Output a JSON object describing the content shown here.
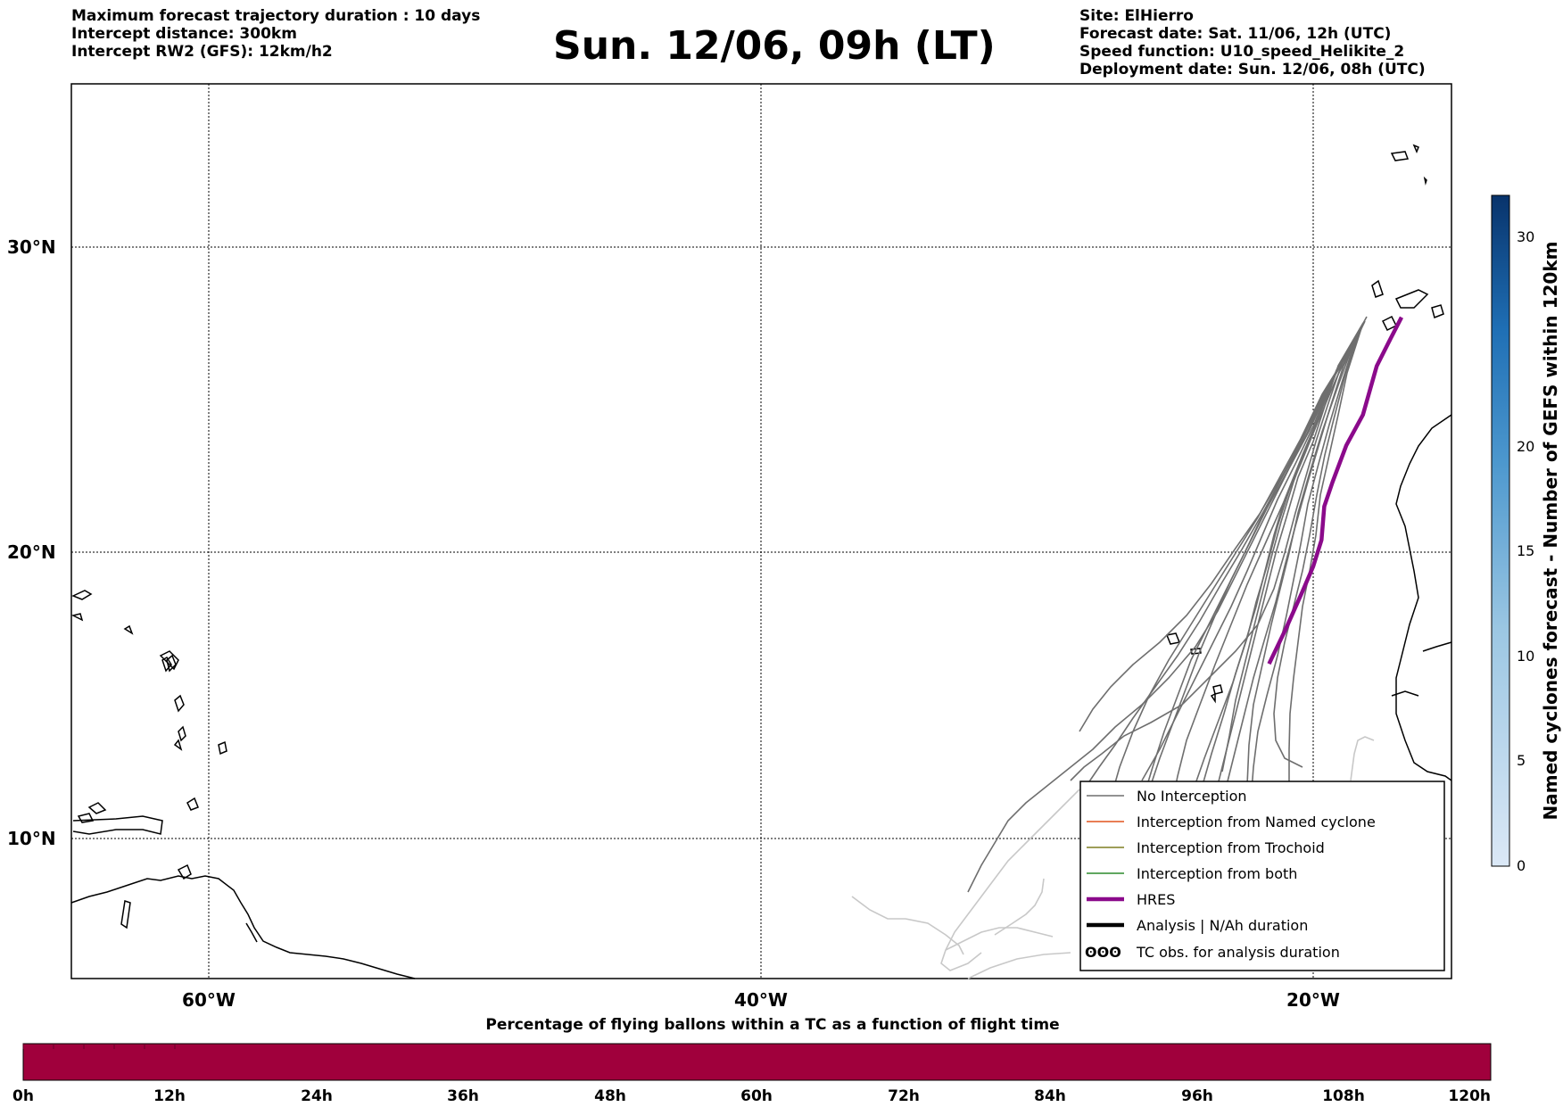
{
  "header": {
    "left_lines": [
      "Maximum forecast trajectory duration : 10 days",
      "Intercept distance: 300km",
      "Intercept RW2 (GFS):  12km/h2"
    ],
    "title": "Sun. 12/06, 09h (LT)",
    "right_lines": [
      "Site: ElHierro",
      "Forecast date: Sat. 11/06, 12h (UTC)",
      "Speed function: U10_speed_Helikite_2",
      "Deployment date: Sun. 12/06, 08h (UTC)"
    ]
  },
  "map": {
    "lat_labels": [
      "30°N",
      "20°N",
      "10°N"
    ],
    "lon_labels": [
      "60°W",
      "40°W",
      "20°W"
    ],
    "lat_values": [
      30,
      20,
      10
    ],
    "lon_values": [
      -60,
      -40,
      -20
    ],
    "extent": {
      "lon_min": -65,
      "lon_max": -15,
      "lat_min": 5.3,
      "lat_max": 35.3
    },
    "hres_track": [
      [
        -16.8,
        27.7
      ],
      [
        -17.2,
        27.0
      ],
      [
        -17.7,
        26.1
      ],
      [
        -18.2,
        24.5
      ],
      [
        -18.8,
        23.5
      ],
      [
        -19.3,
        22.3
      ],
      [
        -19.6,
        21.5
      ],
      [
        -19.7,
        20.4
      ],
      [
        -20.0,
        19.5
      ],
      [
        -20.4,
        18.6
      ],
      [
        -21.0,
        17.3
      ],
      [
        -21.6,
        16.1
      ]
    ],
    "colors": {
      "no_interception": "#6e6e6e",
      "named_cyclone": "#e2531d",
      "trochoid": "#7f7f22",
      "both": "#2b8a2b",
      "hres": "#8b0a8b",
      "analysis": "#000000"
    }
  },
  "legend": {
    "items": [
      {
        "label": "No Interception",
        "swatch": "no_interception"
      },
      {
        "label": "Interception from Named cyclone",
        "swatch": "named_cyclone"
      },
      {
        "label": "Interception from Trochoid",
        "swatch": "trochoid"
      },
      {
        "label": "Interception from both",
        "swatch": "both"
      },
      {
        "label": "HRES",
        "swatch": "hres"
      },
      {
        "label": "Analysis | N/Ah duration",
        "swatch": "analysis"
      },
      {
        "label": "TC obs. for analysis duration",
        "swatch": "tc_symbol"
      }
    ],
    "tc_symbol_text": "ʘʘʘ"
  },
  "colorbar": {
    "label": "Named cyclones forecast - Number of GEFS within 120km",
    "ticks": [
      "0",
      "5",
      "10",
      "15",
      "20",
      "30"
    ],
    "tick_values": [
      0,
      5,
      10,
      15,
      20,
      30
    ],
    "range": [
      0,
      32
    ]
  },
  "timebar": {
    "title": "Percentage of flying ballons within a TC as a function of flight time",
    "ticks": [
      "0h",
      "12h",
      "24h",
      "36h",
      "48h",
      "60h",
      "72h",
      "84h",
      "96h",
      "108h",
      "120h"
    ],
    "fill_color": "#a0003c"
  }
}
